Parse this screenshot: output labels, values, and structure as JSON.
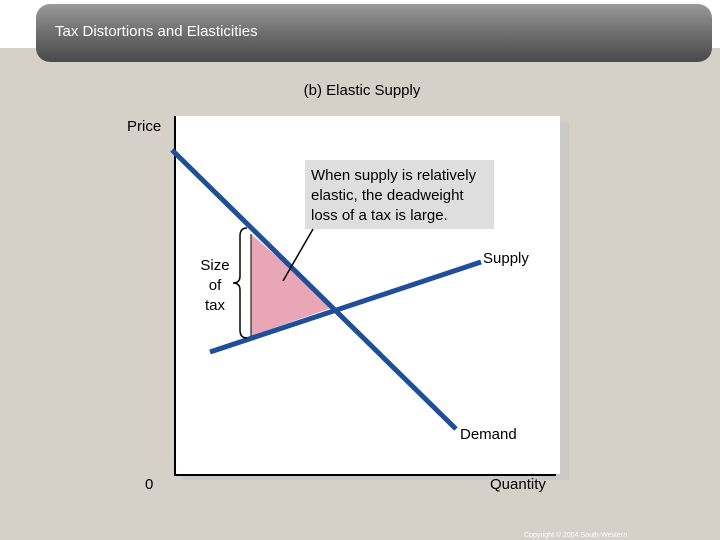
{
  "header": {
    "title": "Tax Distortions and Elasticities"
  },
  "panel": {
    "subtitle": "(b) Elastic Supply"
  },
  "axes": {
    "y_label": "Price",
    "origin": "0",
    "x_label": "Quantity"
  },
  "curves": {
    "supply": "Supply",
    "demand": "Demand"
  },
  "tax_label": [
    "Size",
    "of",
    "tax"
  ],
  "annotation": [
    "When supply is relatively",
    "elastic, the deadweight",
    "loss of a tax is large."
  ],
  "footer": {
    "copyright": "Copyright © 2004 South-Western"
  }
}
